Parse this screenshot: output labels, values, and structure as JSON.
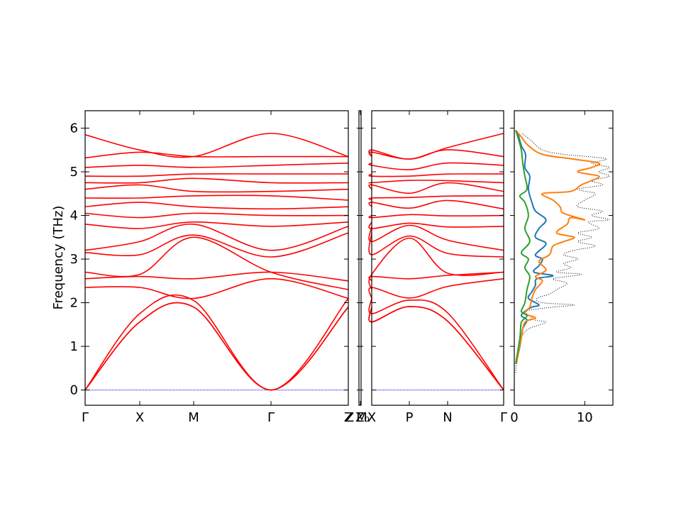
{
  "colors": {
    "band": "#ff0000",
    "zero_line": "#0000ff",
    "dos_total": "#000000",
    "dos_series": [
      "#1f77b4",
      "#ff7f0e",
      "#2ca02c"
    ]
  },
  "chart_data": [
    {
      "type": "line",
      "kind": "phonon-band-structure",
      "title": "",
      "xlabel": "",
      "ylabel": "Frequency (THz)",
      "ylim": [
        -0.35,
        6.4
      ],
      "yticks": [
        0,
        1,
        2,
        3,
        4,
        5,
        6
      ],
      "grid": false,
      "panels": [
        {
          "xticks": [
            "Γ",
            "X",
            "M",
            "Γ",
            "Z"
          ],
          "mode": "full"
        },
        {
          "xticks": [
            "Z",
            "Z₀"
          ],
          "mode": "blank"
        },
        {
          "xticks": [
            "M",
            "X",
            "P",
            "N",
            "Γ"
          ],
          "mode": "full"
        }
      ],
      "zero_frequency_line": true,
      "series": [
        {
          "values_at_high_symmetry_points": [
            0.0,
            1.56,
            1.9,
            0.0,
            1.9
          ]
        },
        {
          "values_at_high_symmetry_points": [
            0.0,
            1.56,
            1.9,
            0.0,
            1.9
          ]
        },
        {
          "values_at_high_symmetry_points": [
            0.0,
            1.75,
            2.05,
            0.0,
            2.1
          ]
        },
        {
          "values_at_high_symmetry_points": [
            2.35,
            2.35,
            2.1,
            2.55,
            2.1
          ]
        },
        {
          "values_at_high_symmetry_points": [
            2.55,
            2.6,
            2.55,
            2.7,
            2.5
          ]
        },
        {
          "values_at_high_symmetry_points": [
            2.7,
            2.65,
            3.5,
            2.7,
            2.3
          ]
        },
        {
          "values_at_high_symmetry_points": [
            3.15,
            3.1,
            3.55,
            3.05,
            3.6
          ]
        },
        {
          "values_at_high_symmetry_points": [
            3.2,
            3.4,
            3.8,
            3.2,
            3.75
          ]
        },
        {
          "values_at_high_symmetry_points": [
            3.8,
            3.7,
            3.85,
            3.75,
            3.85
          ]
        },
        {
          "values_at_high_symmetry_points": [
            4.05,
            3.95,
            4.05,
            4.0,
            4.0
          ]
        },
        {
          "values_at_high_symmetry_points": [
            4.2,
            4.3,
            4.2,
            4.15,
            4.2
          ]
        },
        {
          "values_at_high_symmetry_points": [
            4.4,
            4.4,
            4.45,
            4.45,
            4.35
          ]
        },
        {
          "values_at_high_symmetry_points": [
            4.6,
            4.7,
            4.55,
            4.55,
            4.6
          ]
        },
        {
          "values_at_high_symmetry_points": [
            4.75,
            4.75,
            4.85,
            4.75,
            4.75
          ]
        },
        {
          "values_at_high_symmetry_points": [
            4.9,
            4.9,
            4.95,
            4.95,
            4.95
          ]
        },
        {
          "values_at_high_symmetry_points": [
            5.1,
            5.15,
            5.1,
            5.15,
            5.2
          ]
        },
        {
          "values_at_high_symmetry_points": [
            5.32,
            5.45,
            5.35,
            5.35,
            5.35
          ]
        },
        {
          "values_at_high_symmetry_points": [
            5.85,
            5.5,
            5.35,
            5.88,
            5.35
          ]
        }
      ]
    },
    {
      "type": "line",
      "kind": "density-of-states",
      "title": "",
      "xlabel": "",
      "ylabel": "",
      "xlim": [
        0,
        14
      ],
      "xticks": [
        0,
        10
      ],
      "ylim": [
        -0.35,
        6.4
      ],
      "grid": false,
      "legend": "none",
      "series": [
        {
          "style": "dotted",
          "points": [
            [
              0.2,
              0.4
            ],
            [
              0.5,
              0.9
            ],
            [
              1.0,
              1.2
            ],
            [
              2.0,
              1.4
            ],
            [
              4.5,
              1.55
            ],
            [
              3.0,
              1.6
            ],
            [
              2.2,
              1.7
            ],
            [
              1.5,
              1.8
            ],
            [
              3.0,
              1.85
            ],
            [
              5.5,
              1.9
            ],
            [
              8.5,
              1.95
            ],
            [
              4.0,
              2.0
            ],
            [
              3.2,
              2.1
            ],
            [
              5.0,
              2.2
            ],
            [
              6.0,
              2.3
            ],
            [
              7.5,
              2.45
            ],
            [
              5.5,
              2.55
            ],
            [
              9.5,
              2.65
            ],
            [
              6.0,
              2.7
            ],
            [
              8.0,
              2.8
            ],
            [
              7.0,
              2.9
            ],
            [
              9.0,
              3.0
            ],
            [
              7.0,
              3.1
            ],
            [
              8.5,
              3.2
            ],
            [
              11.5,
              3.3
            ],
            [
              9.0,
              3.4
            ],
            [
              11.0,
              3.5
            ],
            [
              9.0,
              3.6
            ],
            [
              12.0,
              3.7
            ],
            [
              10.5,
              3.85
            ],
            [
              13.5,
              3.9
            ],
            [
              11.0,
              4.0
            ],
            [
              12.5,
              4.1
            ],
            [
              9.0,
              4.2
            ],
            [
              10.0,
              4.35
            ],
            [
              11.5,
              4.5
            ],
            [
              9.0,
              4.6
            ],
            [
              12.5,
              4.7
            ],
            [
              11.0,
              4.8
            ],
            [
              13.5,
              4.9
            ],
            [
              12.0,
              5.0
            ],
            [
              13.5,
              5.1
            ],
            [
              11.0,
              5.2
            ],
            [
              13.0,
              5.3
            ],
            [
              7.0,
              5.4
            ],
            [
              4.0,
              5.5
            ],
            [
              2.5,
              5.7
            ],
            [
              1.0,
              5.9
            ]
          ]
        },
        {
          "points": [
            [
              0.2,
              0.6
            ],
            [
              0.8,
              1.0
            ],
            [
              1.2,
              1.4
            ],
            [
              1.8,
              1.6
            ],
            [
              1.0,
              1.7
            ],
            [
              1.5,
              1.8
            ],
            [
              2.5,
              1.9
            ],
            [
              3.5,
              1.95
            ],
            [
              2.0,
              2.1
            ],
            [
              2.5,
              2.25
            ],
            [
              3.0,
              2.4
            ],
            [
              3.2,
              2.55
            ],
            [
              5.5,
              2.62
            ],
            [
              2.8,
              2.7
            ],
            [
              3.5,
              2.85
            ],
            [
              4.0,
              3.0
            ],
            [
              3.0,
              3.1
            ],
            [
              4.5,
              3.35
            ],
            [
              3.0,
              3.5
            ],
            [
              3.5,
              3.7
            ],
            [
              4.5,
              3.9
            ],
            [
              3.0,
              4.1
            ],
            [
              2.5,
              4.3
            ],
            [
              2.0,
              4.6
            ],
            [
              2.2,
              4.9
            ],
            [
              1.5,
              5.1
            ],
            [
              1.6,
              5.4
            ],
            [
              1.0,
              5.6
            ],
            [
              0.5,
              5.9
            ]
          ]
        },
        {
          "points": [
            [
              0.3,
              0.6
            ],
            [
              1.0,
              1.2
            ],
            [
              1.5,
              1.55
            ],
            [
              3.0,
              1.65
            ],
            [
              1.5,
              1.75
            ],
            [
              2.2,
              1.9
            ],
            [
              2.5,
              2.1
            ],
            [
              3.0,
              2.3
            ],
            [
              4.0,
              2.5
            ],
            [
              3.0,
              2.6
            ],
            [
              4.5,
              2.75
            ],
            [
              3.5,
              2.95
            ],
            [
              5.0,
              3.1
            ],
            [
              5.5,
              3.3
            ],
            [
              7.0,
              3.4
            ],
            [
              8.5,
              3.5
            ],
            [
              6.0,
              3.6
            ],
            [
              7.5,
              3.8
            ],
            [
              8.0,
              3.95
            ],
            [
              10.0,
              3.9
            ],
            [
              7.0,
              4.05
            ],
            [
              6.5,
              4.2
            ],
            [
              5.5,
              4.35
            ],
            [
              4.0,
              4.5
            ],
            [
              8.0,
              4.55
            ],
            [
              9.5,
              4.7
            ],
            [
              11.0,
              4.8
            ],
            [
              12.0,
              4.9
            ],
            [
              9.0,
              5.0
            ],
            [
              11.0,
              5.1
            ],
            [
              12.0,
              5.2
            ],
            [
              8.0,
              5.3
            ],
            [
              4.0,
              5.4
            ],
            [
              2.0,
              5.6
            ],
            [
              1.0,
              5.8
            ],
            [
              0.2,
              5.95
            ]
          ]
        },
        {
          "points": [
            [
              0.2,
              0.6
            ],
            [
              0.8,
              1.2
            ],
            [
              1.0,
              1.55
            ],
            [
              1.8,
              1.7
            ],
            [
              1.0,
              1.8
            ],
            [
              1.5,
              2.0
            ],
            [
              1.8,
              2.3
            ],
            [
              2.2,
              2.6
            ],
            [
              1.5,
              2.8
            ],
            [
              2.0,
              3.0
            ],
            [
              1.0,
              3.15
            ],
            [
              2.2,
              3.4
            ],
            [
              1.5,
              3.7
            ],
            [
              2.0,
              4.0
            ],
            [
              1.5,
              4.3
            ],
            [
              0.8,
              4.45
            ],
            [
              1.8,
              4.6
            ],
            [
              1.5,
              4.9
            ],
            [
              1.2,
              5.2
            ],
            [
              1.0,
              5.5
            ],
            [
              0.5,
              5.8
            ],
            [
              0.2,
              5.95
            ]
          ]
        }
      ]
    }
  ]
}
